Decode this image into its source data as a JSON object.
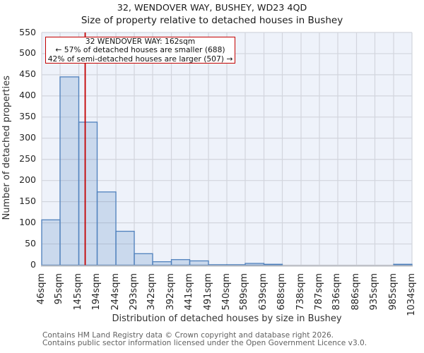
{
  "chart_data": {
    "type": "bar",
    "title": "32, WENDOVER WAY, BUSHEY, WD23 4QD",
    "subtitle": "Size of property relative to detached houses in Bushey",
    "xlabel": "Distribution of detached houses by size in Bushey",
    "ylabel": "Number of detached properties",
    "tick_labels": [
      "46sqm",
      "95sqm",
      "145sqm",
      "194sqm",
      "244sqm",
      "293sqm",
      "342sqm",
      "392sqm",
      "441sqm",
      "491sqm",
      "540sqm",
      "589sqm",
      "639sqm",
      "688sqm",
      "738sqm",
      "787sqm",
      "836sqm",
      "886sqm",
      "935sqm",
      "985sqm",
      "1034sqm"
    ],
    "bin_edges_sqm": [
      46,
      95,
      145,
      194,
      244,
      293,
      342,
      392,
      441,
      491,
      540,
      589,
      639,
      688,
      738,
      787,
      836,
      886,
      935,
      985,
      1034
    ],
    "values": [
      107,
      445,
      338,
      173,
      80,
      27,
      8,
      13,
      10,
      1,
      1,
      4,
      2,
      0,
      0,
      0,
      0,
      0,
      0,
      2
    ],
    "ylim": [
      0,
      550
    ],
    "ytick_step": 50,
    "grid": true,
    "legend": null,
    "marker_line": {
      "value_sqm": 162,
      "color": "#c40000"
    },
    "annotation": {
      "line1": "32 WENDOVER WAY: 162sqm",
      "line2": "← 57% of detached houses are smaller (688)",
      "line3": "42% of semi-detached houses are larger (507) →",
      "border_color": "#c40000"
    },
    "colors": {
      "bar_fill": "rgba(79,129,189,0.22)",
      "bar_edge": "#4f81bd",
      "plot_bg": "#eef2fa",
      "grid": "#d2d5dd",
      "axis_spine": "#b9bcc2",
      "marker": "#c40000"
    }
  },
  "footer": {
    "line1": "Contains HM Land Registry data © Crown copyright and database right 2026.",
    "line2": "Contains public sector information licensed under the Open Government Licence v3.0."
  }
}
